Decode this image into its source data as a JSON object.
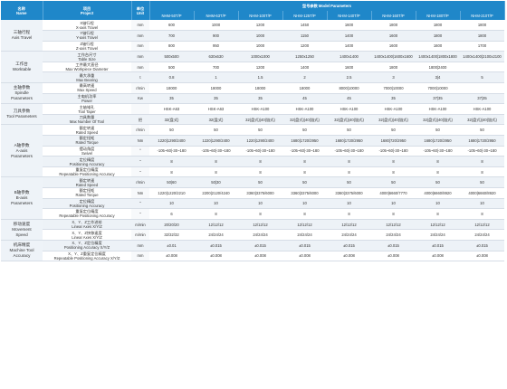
{
  "header": {
    "name_cn": "名称",
    "name_en": "Name",
    "project_cn": "项目",
    "project_en": "Project",
    "unit_cn": "单位",
    "unit_en": "Unit",
    "params_label": "型号参数 Model Parameters",
    "models": [
      "NHM-50T/P",
      "NHM-63T/P",
      "NHM-100T/P",
      "NHM-125T/P",
      "NHM-140T/P",
      "NHM-160T/P",
      "NHM-180T/P",
      "NHM-210T/P"
    ]
  },
  "groups": [
    {
      "cn": "三轴行程",
      "en": [
        "Axis Travel"
      ],
      "rows": [
        {
          "cn": "X轴行程",
          "en": "X-axis Travel",
          "unit": "mm",
          "values": [
            "600",
            "1000",
            "1200",
            "1450",
            "1600",
            "1800",
            "1800",
            "1800"
          ]
        },
        {
          "cn": "Y轴行程",
          "en": "Y-axis Travel",
          "unit": "mm",
          "values": [
            "700",
            "900",
            "1000",
            "1150",
            "1400",
            "1600",
            "1800",
            "1800"
          ]
        },
        {
          "cn": "Z轴行程",
          "en": "Z-axis Travel",
          "unit": "mm",
          "values": [
            "800",
            "950",
            "1000",
            "1200",
            "1400",
            "1600",
            "1600",
            "1700"
          ]
        }
      ]
    },
    {
      "cn": "工作台",
      "en": [
        "Worktable"
      ],
      "rows": [
        {
          "cn": "工作台尺寸",
          "en": "Table Size",
          "unit": "mm",
          "values": [
            "500x500",
            "630x630",
            "1000x1000",
            "1250x1250",
            "1400x1400",
            "1400x1400|1600x1600",
            "1400x1400|1800x1800",
            "1400x1400|2100x2100"
          ]
        },
        {
          "cn": "工件最大直径",
          "en": "Max Workpiece Diameter",
          "unit": "mm",
          "values": [
            "500",
            "700",
            "1200",
            "1400",
            "1600",
            "1800",
            "1800|2400",
            ""
          ]
        },
        {
          "cn": "最大承重",
          "en": "Max Bearing",
          "unit": "t",
          "values": [
            "0.8",
            "1",
            "1.5",
            "2",
            "2.5",
            "3",
            "3|4",
            "5"
          ]
        }
      ]
    },
    {
      "cn": "主轴参数",
      "en": [
        "Spindle",
        "Parameters"
      ],
      "rows": [
        {
          "cn": "最高转速",
          "en": "Max Speed",
          "unit": "r/min",
          "values": [
            "18000",
            "18000",
            "18000",
            "18000",
            "8000|10000",
            "7000|10000",
            "7000|10000",
            ""
          ]
        },
        {
          "cn": "主电机功率",
          "en": "Power",
          "unit": "Kw",
          "values": [
            "35",
            "35",
            "35",
            "45",
            "45",
            "35",
            "37|35",
            "37|35"
          ]
        }
      ]
    },
    {
      "cn": "刀具参数",
      "en": [
        "Tool Parameters"
      ],
      "rows": [
        {
          "cn": "主轴锥孔",
          "en": "Tool Taper",
          "unit": "",
          "values": [
            "HSK-A63",
            "HSK-A63",
            "HSK-A100",
            "HSK-A100",
            "HSK-A100",
            "HSK-A100",
            "HSK-A100",
            "HSK-A100"
          ]
        },
        {
          "cn": "刀具数量",
          "en": "Max Number Of Tool",
          "unit": "把",
          "values": [
            "32(盘式)",
            "32(盘式)",
            "32(盘式)|40(链式)",
            "32(盘式)|40(链式)",
            "32(盘式)|40(链式)",
            "32(盘式)|40(链式)",
            "32(盘式)|40(链式)",
            "32(盘式)|40(链式)"
          ]
        }
      ]
    },
    {
      "cn": "A轴参数",
      "en": [
        "A-axis",
        "Parameters"
      ],
      "rows": [
        {
          "cn": "额定转速",
          "en": "Rated Speed",
          "unit": "r/min",
          "values": [
            "50",
            "50",
            "50",
            "50",
            "50",
            "50",
            "50",
            "50"
          ]
        },
        {
          "cn": "额定扭矩",
          "en": "Rated Torque",
          "unit": "Nm",
          "values": [
            "1220|1290/2400",
            "1220|1290/2400",
            "1220|1290/2400",
            "1680|1720/2950",
            "1680|1720/2950",
            "1680|720/2950",
            "1680|1720/2950",
            "1680|1720/2950"
          ]
        },
        {
          "cn": "摆动角度",
          "en": "Swivel",
          "unit": "°",
          "values": [
            "-105~60|-30~180",
            "-105~60|-30~180",
            "-105~60|-30~180",
            "-105~60|-30~180",
            "-105~60|-30~180",
            "-105~60|-30~180",
            "-105~60|-30~180",
            "-105~60|-30~180"
          ]
        },
        {
          "cn": "定位精度",
          "en": "Positioning Accuracy",
          "unit": "\"",
          "values": [
            "8",
            "8",
            "8",
            "8",
            "8",
            "8",
            "8",
            "8"
          ]
        },
        {
          "cn": "重复定位精度",
          "en": "Repeatable Positioning Accuracy",
          "unit": "\"",
          "values": [
            "8",
            "8",
            "8",
            "8",
            "8",
            "8",
            "8",
            "8"
          ]
        }
      ]
    },
    {
      "cn": "B轴参数",
      "en": [
        "B-axis",
        "Parameters"
      ],
      "rows": [
        {
          "cn": "额定转速",
          "en": "Rated Speed",
          "unit": "r/min",
          "values": [
            "50|60",
            "50|30",
            "50",
            "50",
            "50",
            "50",
            "50",
            "50"
          ]
        },
        {
          "cn": "额定扭矩",
          "en": "Rated Torque",
          "unit": "Nm",
          "values": [
            "1220|1220/2210",
            "2200|2120/4240",
            "3360|3375/6000",
            "3360|3375/6000",
            "3360|3375/6000",
            "4000|6660/7770",
            "4000|6660/8920",
            "4000|6660/8920"
          ]
        },
        {
          "cn": "定位精度",
          "en": "Positioning Accuracy",
          "unit": "\"",
          "values": [
            "10",
            "10",
            "10",
            "10",
            "10",
            "10",
            "10",
            "10"
          ]
        },
        {
          "cn": "重复定位精度",
          "en": "Repeatable Positioning Accuracy",
          "unit": "\"",
          "values": [
            "6",
            "8",
            "8",
            "8",
            "8",
            "8",
            "8",
            "8"
          ]
        }
      ]
    },
    {
      "cn": "移动速度",
      "en": [
        "Movement",
        "Speed"
      ],
      "rows": [
        {
          "cn": "X、Y、Z工作进给",
          "en": "Linear Axes X/Y/Z",
          "unit": "m/min",
          "values": [
            "20/20/20",
            "12/12/12",
            "12/12/12",
            "12/12/12",
            "12/12/12",
            "12/12/12",
            "12/12/12",
            "12/12/12"
          ]
        },
        {
          "cn": "X、Y、Z快移速度",
          "en": "Linear Axes X/Y/Z",
          "unit": "m/min",
          "values": [
            "32/32/32",
            "24/24/24",
            "24/24/24",
            "24/24/24",
            "24/24/24",
            "24/24/24",
            "24/24/24",
            "24/24/24"
          ]
        }
      ]
    },
    {
      "cn": "机床精度",
      "en": [
        "Machine Tool",
        "Accuracy"
      ],
      "rows": [
        {
          "cn": "X、Y、Z定位精度",
          "en": "Positioning Accuracy X/Y/Z",
          "unit": "mm",
          "values": [
            "±0.01",
            "±0.015",
            "±0.015",
            "±0.015",
            "±0.015",
            "±0.015",
            "±0.015",
            "±0.015"
          ]
        },
        {
          "cn": "X、Y、Z重复定位精度",
          "en": "Repeatable Positioning Accuracy X/Y/Z",
          "unit": "mm",
          "values": [
            "±0.008",
            "±0.008",
            "±0.008",
            "±0.008",
            "±0.008",
            "±0.008",
            "±0.008",
            "±0.008"
          ]
        }
      ]
    }
  ]
}
